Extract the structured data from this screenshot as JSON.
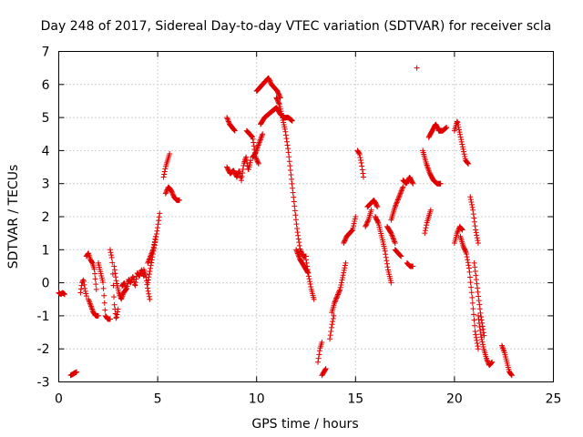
{
  "chart_data": {
    "type": "scatter",
    "title": "Day 248 of 2017, Sidereal Day-to-day VTEC variation (SDTVAR) for receiver scla",
    "xlabel": "GPS time / hours",
    "ylabel": "SDTVAR / TECUs",
    "xlim": [
      0,
      25
    ],
    "ylim": [
      -3,
      7
    ],
    "xticks": [
      "0",
      "5",
      "10",
      "15",
      "20",
      "25"
    ],
    "yticks": [
      "-3",
      "-2",
      "-1",
      "0",
      "1",
      "2",
      "3",
      "4",
      "5",
      "6",
      "7"
    ],
    "grid": true,
    "marker": "+",
    "series": [
      {
        "name": "SDTVAR",
        "color": "#e00000",
        "segments": [
          {
            "x0": 0.0,
            "x1": 0.3,
            "pts": [
              -0.3,
              -0.35,
              -0.3,
              -0.35
            ]
          },
          {
            "x0": 0.6,
            "x1": 0.9,
            "pts": [
              -2.8,
              -2.75,
              -2.7
            ]
          },
          {
            "x0": 1.1,
            "x1": 1.4,
            "pts": [
              -0.3,
              0.0,
              0.1,
              -0.2,
              -0.4
            ]
          },
          {
            "x0": 1.4,
            "x1": 1.9,
            "pts": [
              0.8,
              0.9,
              0.7,
              0.6,
              0.4,
              -0.2
            ]
          },
          {
            "x0": 1.5,
            "x1": 2.0,
            "pts": [
              -0.5,
              -0.7,
              -0.9,
              -1.0,
              -1.0
            ]
          },
          {
            "x0": 2.0,
            "x1": 2.6,
            "pts": [
              0.6,
              0.3,
              0.0,
              -1.0,
              -1.1,
              -1.1
            ]
          },
          {
            "x0": 2.6,
            "x1": 3.0,
            "pts": [
              1.0,
              0.7,
              -0.6,
              -1.1,
              -0.8
            ]
          },
          {
            "x0": 2.8,
            "x1": 3.4,
            "pts": [
              0.5,
              0.0,
              -0.3,
              -0.5,
              -0.3,
              -0.2
            ]
          },
          {
            "x0": 3.2,
            "x1": 4.3,
            "pts": [
              -0.1,
              0.0,
              -0.2,
              0.1,
              0.0,
              0.2,
              -0.1,
              0.3,
              0.2,
              0.4,
              0.2
            ]
          },
          {
            "x0": 4.3,
            "x1": 4.6,
            "pts": [
              0.4,
              0.2,
              -0.2,
              -0.5
            ]
          },
          {
            "x0": 4.5,
            "x1": 5.1,
            "pts": [
              0.0,
              0.4,
              0.8,
              1.2,
              1.6,
              2.1
            ]
          },
          {
            "x0": 4.5,
            "x1": 4.9,
            "pts": [
              0.6,
              0.8,
              1.0,
              1.4
            ]
          },
          {
            "x0": 5.3,
            "x1": 5.6,
            "pts": [
              3.2,
              3.5,
              3.7,
              3.9
            ]
          },
          {
            "x0": 5.4,
            "x1": 6.1,
            "pts": [
              2.7,
              2.9,
              2.8,
              2.6,
              2.5,
              2.5
            ]
          },
          {
            "x0": 8.5,
            "x1": 8.9,
            "pts": [
              5.0,
              4.8,
              4.7,
              4.6
            ]
          },
          {
            "x0": 8.5,
            "x1": 9.0,
            "pts": [
              3.5,
              3.3,
              3.4,
              3.2
            ]
          },
          {
            "x0": 9.0,
            "x1": 9.7,
            "pts": [
              3.2,
              3.4,
              3.1,
              3.6,
              3.8,
              3.4,
              3.7
            ]
          },
          {
            "x0": 9.5,
            "x1": 10.1,
            "pts": [
              4.6,
              4.5,
              4.4,
              3.8,
              3.6
            ]
          },
          {
            "x0": 9.8,
            "x1": 10.3,
            "pts": [
              3.8,
              3.9,
              4.1,
              4.3,
              4.5
            ]
          },
          {
            "x0": 10.0,
            "x1": 11.2,
            "pts": [
              5.8,
              5.9,
              6.0,
              6.1,
              6.2,
              6.0,
              5.9,
              5.8,
              5.6
            ]
          },
          {
            "x0": 10.2,
            "x1": 11.8,
            "pts": [
              4.8,
              5.0,
              5.1,
              5.2,
              5.3,
              5.1,
              5.0,
              5.0,
              4.9
            ]
          },
          {
            "x0": 11.0,
            "x1": 12.5,
            "pts": [
              5.6,
              5.4,
              5.0,
              4.6,
              4.0,
              3.2,
              2.4,
              1.6,
              1.0,
              0.8,
              0.8
            ]
          },
          {
            "x0": 12.0,
            "x1": 12.6,
            "pts": [
              1.0,
              0.7,
              0.5,
              0.3
            ]
          },
          {
            "x0": 12.5,
            "x1": 12.9,
            "pts": [
              0.7,
              0.2,
              -0.2,
              -0.5
            ]
          },
          {
            "x0": 13.1,
            "x1": 13.3,
            "pts": [
              -2.4,
              -2.0,
              -1.8
            ]
          },
          {
            "x0": 13.3,
            "x1": 13.5,
            "pts": [
              -2.8,
              -2.7,
              -2.6
            ]
          },
          {
            "x0": 13.7,
            "x1": 13.9,
            "pts": [
              -1.7,
              -1.3,
              -1.0
            ]
          },
          {
            "x0": 13.8,
            "x1": 14.5,
            "pts": [
              -0.9,
              -0.6,
              -0.4,
              -0.2,
              0.2,
              0.6
            ]
          },
          {
            "x0": 14.4,
            "x1": 15.0,
            "pts": [
              1.2,
              1.4,
              1.5,
              1.6,
              2.0
            ]
          },
          {
            "x0": 15.1,
            "x1": 15.4,
            "pts": [
              4.0,
              3.9,
              3.6,
              3.2
            ]
          },
          {
            "x0": 15.5,
            "x1": 15.8,
            "pts": [
              1.7,
              1.9,
              2.2
            ]
          },
          {
            "x0": 15.6,
            "x1": 16.1,
            "pts": [
              2.3,
              2.4,
              2.5,
              2.3
            ]
          },
          {
            "x0": 16.0,
            "x1": 16.8,
            "pts": [
              2.0,
              1.8,
              1.4,
              1.0,
              0.4,
              0.0
            ]
          },
          {
            "x0": 16.6,
            "x1": 17.0,
            "pts": [
              1.7,
              1.5,
              1.2
            ]
          },
          {
            "x0": 16.8,
            "x1": 17.4,
            "pts": [
              1.9,
              2.3,
              2.6,
              2.9
            ]
          },
          {
            "x0": 17.0,
            "x1": 17.3,
            "pts": [
              1.0,
              0.9,
              0.8
            ]
          },
          {
            "x0": 17.4,
            "x1": 17.9,
            "pts": [
              3.1,
              3.0,
              3.2,
              3.0
            ]
          },
          {
            "x0": 17.6,
            "x1": 17.9,
            "pts": [
              0.6,
              0.5,
              0.5
            ]
          },
          {
            "x0": 18.1,
            "x1": 18.1,
            "pts": [
              6.5
            ]
          },
          {
            "x0": 18.5,
            "x1": 18.8,
            "pts": [
              1.5,
              1.8,
              2.0,
              2.2
            ]
          },
          {
            "x0": 18.4,
            "x1": 19.3,
            "pts": [
              4.0,
              3.6,
              3.3,
              3.1,
              3.0,
              3.0
            ]
          },
          {
            "x0": 18.7,
            "x1": 19.4,
            "pts": [
              4.4,
              4.6,
              4.8,
              4.6,
              4.6
            ]
          },
          {
            "x0": 19.2,
            "x1": 19.6,
            "pts": [
              4.6,
              4.6,
              4.7
            ]
          },
          {
            "x0": 20.0,
            "x1": 20.7,
            "pts": [
              4.6,
              4.9,
              4.5,
              4.1,
              3.7,
              3.6
            ]
          },
          {
            "x0": 20.0,
            "x1": 20.4,
            "pts": [
              1.2,
              1.5,
              1.7,
              1.6
            ]
          },
          {
            "x0": 20.3,
            "x1": 21.2,
            "pts": [
              1.4,
              1.1,
              0.9,
              0.4,
              -0.5,
              -1.5,
              -2.0
            ]
          },
          {
            "x0": 20.8,
            "x1": 21.2,
            "pts": [
              2.6,
              2.2,
              1.6,
              1.2
            ]
          },
          {
            "x0": 21.0,
            "x1": 21.5,
            "pts": [
              0.6,
              -0.2,
              -1.0,
              -1.6
            ]
          },
          {
            "x0": 21.2,
            "x1": 21.9,
            "pts": [
              -1.0,
              -1.6,
              -2.0,
              -2.3,
              -2.5,
              -2.4
            ]
          },
          {
            "x0": 22.4,
            "x1": 22.9,
            "pts": [
              -1.9,
              -2.1,
              -2.4,
              -2.7,
              -2.8
            ]
          }
        ]
      }
    ]
  }
}
